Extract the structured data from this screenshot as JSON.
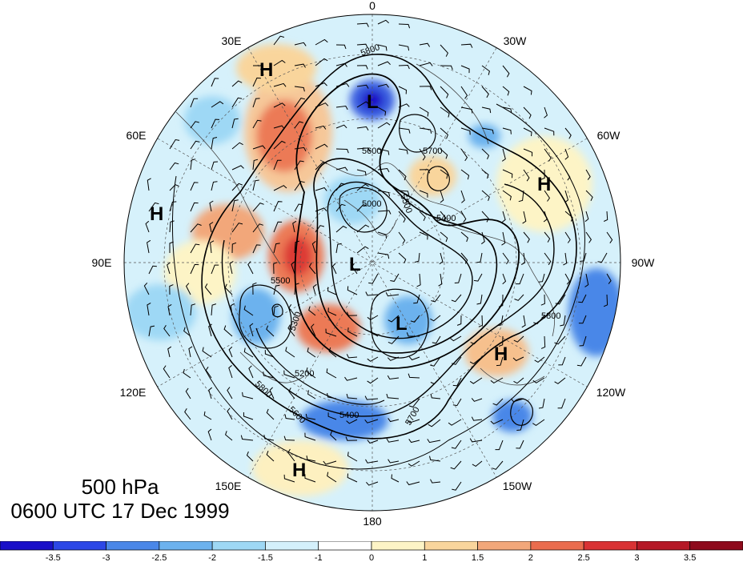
{
  "title": {
    "level": "500 hPa",
    "time": "0600 UTC 17 Dec 1999"
  },
  "longitude_labels": [
    {
      "text": "0",
      "name": "lon-label-0"
    },
    {
      "text": "30W",
      "name": "lon-label-30w"
    },
    {
      "text": "60W",
      "name": "lon-label-60w"
    },
    {
      "text": "90W",
      "name": "lon-label-90w"
    },
    {
      "text": "120W",
      "name": "lon-label-120w"
    },
    {
      "text": "150W",
      "name": "lon-label-150w"
    },
    {
      "text": "180",
      "name": "lon-label-180"
    },
    {
      "text": "150E",
      "name": "lon-label-150e"
    },
    {
      "text": "120E",
      "name": "lon-label-120e"
    },
    {
      "text": "90E",
      "name": "lon-label-90e"
    },
    {
      "text": "60E",
      "name": "lon-label-60e"
    },
    {
      "text": "30E",
      "name": "lon-label-30e"
    }
  ],
  "pressure_centers": [
    {
      "text": "H",
      "name": "high-center"
    },
    {
      "text": "H",
      "name": "high-center"
    },
    {
      "text": "H",
      "name": "high-center"
    },
    {
      "text": "H",
      "name": "high-center"
    },
    {
      "text": "H",
      "name": "high-center"
    },
    {
      "text": "L",
      "name": "low-center"
    },
    {
      "text": "L",
      "name": "low-center"
    },
    {
      "text": "L",
      "name": "low-center"
    }
  ],
  "contour_labels": [
    "5800",
    "5600",
    "5500",
    "5000",
    "5400",
    "5300",
    "5200",
    "5700",
    "5600",
    "5800",
    "5400",
    "5700",
    "5800",
    "5500"
  ],
  "colorbar": {
    "labels": [
      "-3.5",
      "-3",
      "-2.5",
      "-2",
      "-1.5",
      "-1",
      "0",
      "1",
      "1.5",
      "2",
      "2.5",
      "3",
      "3.5"
    ],
    "colors": [
      "#1a10c8",
      "#2c47e6",
      "#4a87e8",
      "#6cb2ee",
      "#9ed8f5",
      "#d4f0fb",
      "#ffffff",
      "#fdf4c6",
      "#f9d59c",
      "#f2a77a",
      "#ea6c4e",
      "#d93234",
      "#b51826",
      "#8e0a1c"
    ]
  }
}
